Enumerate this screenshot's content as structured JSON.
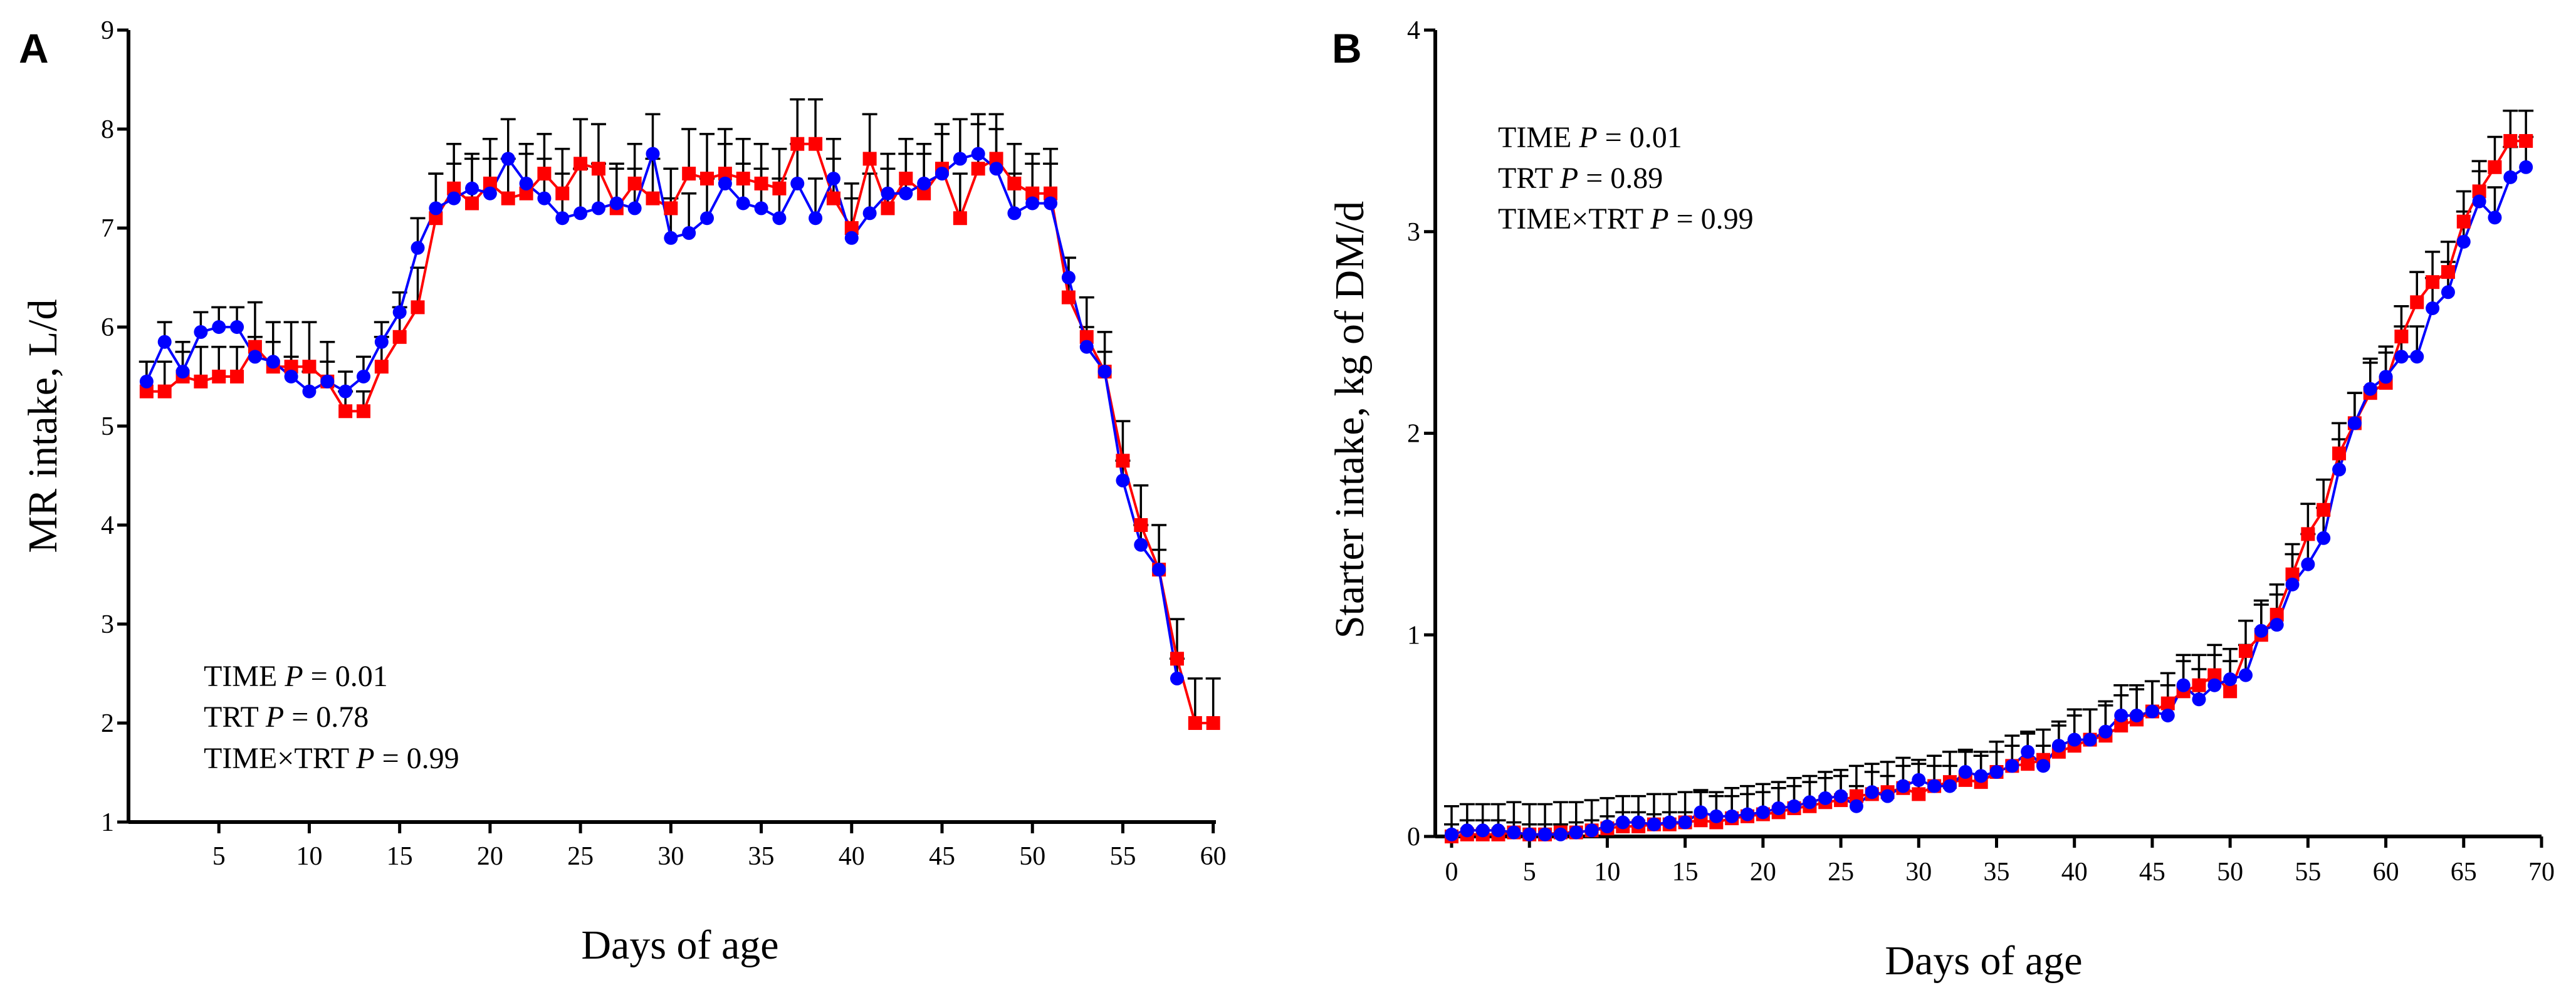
{
  "chart_data": [
    {
      "panel": "A",
      "type": "line",
      "xlabel": "Days of age",
      "ylabel": "MR intake, L/d",
      "xlim": [
        0,
        60
      ],
      "ylim": [
        1,
        9
      ],
      "xticks": [
        5,
        10,
        15,
        20,
        25,
        30,
        35,
        40,
        45,
        50,
        55,
        60
      ],
      "yticks": [
        1,
        2,
        3,
        4,
        5,
        6,
        7,
        8,
        9
      ],
      "stats": [
        {
          "label": "TIME",
          "p_label": "P",
          "value": " = 0.01"
        },
        {
          "label": "TRT",
          "p_label": "P",
          "value": " = 0.78"
        },
        {
          "label": "TIME×TRT",
          "p_label": "P",
          "value": " = 0.99"
        }
      ],
      "series": [
        {
          "name": "red",
          "color": "#ff0000",
          "marker": "square",
          "x": [
            1,
            2,
            3,
            4,
            5,
            6,
            7,
            8,
            9,
            10,
            11,
            12,
            13,
            14,
            15,
            16,
            17,
            18,
            19,
            20,
            21,
            22,
            23,
            24,
            25,
            26,
            27,
            28,
            29,
            30,
            31,
            32,
            33,
            34,
            35,
            36,
            37,
            38,
            39,
            40,
            41,
            42,
            43,
            44,
            45,
            46,
            47,
            48,
            49,
            50,
            51,
            52,
            53,
            54,
            55,
            56,
            57,
            58,
            59,
            60
          ],
          "values": [
            5.35,
            5.35,
            5.5,
            5.45,
            5.5,
            5.5,
            5.8,
            5.6,
            5.6,
            5.6,
            5.45,
            5.15,
            5.15,
            5.6,
            5.9,
            6.2,
            7.1,
            7.4,
            7.25,
            7.45,
            7.3,
            7.35,
            7.55,
            7.35,
            7.65,
            7.6,
            7.2,
            7.45,
            7.3,
            7.2,
            7.55,
            7.5,
            7.55,
            7.5,
            7.45,
            7.4,
            7.85,
            7.85,
            7.3,
            7.0,
            7.7,
            7.2,
            7.5,
            7.35,
            7.6,
            7.1,
            7.6,
            7.7,
            7.45,
            7.35,
            7.35,
            6.3,
            5.9,
            5.55,
            4.65,
            4.0,
            3.55,
            2.65,
            2.0,
            2.0
          ],
          "errors": [
            0.3,
            0.3,
            0.35,
            0.35,
            0.3,
            0.3,
            0.45,
            0.45,
            0.45,
            0.45,
            0.4,
            0.2,
            0.2,
            0.3,
            0.3,
            0.4,
            0.45,
            0.45,
            0.45,
            0.45,
            0.4,
            0.4,
            0.4,
            0.45,
            0.45,
            0.45,
            0.4,
            0.4,
            0.4,
            0.4,
            0.45,
            0.45,
            0.45,
            0.4,
            0.4,
            0.4,
            0.45,
            0.45,
            0.4,
            0.45,
            0.45,
            0.4,
            0.4,
            0.4,
            0.45,
            0.45,
            0.45,
            0.45,
            0.4,
            0.4,
            0.45,
            0.4,
            0.4,
            0.4,
            0.4,
            0.4,
            0.45,
            0.4,
            0.45,
            0.45
          ]
        },
        {
          "name": "blue",
          "color": "#0000ff",
          "marker": "circle",
          "x": [
            1,
            2,
            3,
            4,
            5,
            6,
            7,
            8,
            9,
            10,
            11,
            12,
            13,
            14,
            15,
            16,
            17,
            18,
            19,
            20,
            21,
            22,
            23,
            24,
            25,
            26,
            27,
            28,
            29,
            30,
            31,
            32,
            33,
            34,
            35,
            36,
            37,
            38,
            39,
            40,
            41,
            42,
            43,
            44,
            45,
            46,
            47,
            48,
            49,
            50,
            51,
            52,
            53,
            54,
            55,
            56,
            57,
            58,
            59,
            60
          ],
          "values": [
            5.45,
            5.85,
            5.55,
            5.95,
            6.0,
            6.0,
            5.7,
            5.65,
            5.5,
            5.35,
            5.45,
            5.35,
            5.5,
            5.85,
            6.15,
            6.8,
            7.2,
            7.3,
            7.4,
            7.35,
            7.7,
            7.45,
            7.3,
            7.1,
            7.15,
            7.2,
            7.25,
            7.2,
            7.75,
            6.9,
            6.95,
            7.1,
            7.45,
            7.25,
            7.2,
            7.1,
            7.45,
            7.1,
            7.5,
            6.9,
            7.15,
            7.35,
            7.35,
            7.45,
            7.55,
            7.7,
            7.75,
            7.6,
            7.15,
            7.25,
            7.25,
            6.5,
            5.8,
            5.55,
            4.45,
            3.8,
            3.55,
            2.45,
            null,
            null
          ],
          "errors": [
            0.2,
            0.2,
            0.2,
            0.2,
            0.2,
            0.2,
            0.2,
            0.2,
            0.2,
            0.2,
            0.2,
            0.2,
            0.2,
            0.2,
            0.2,
            0.3,
            0.35,
            0.35,
            0.35,
            0.35,
            0.4,
            0.4,
            0.4,
            0.45,
            0.45,
            0.45,
            0.4,
            0.4,
            0.4,
            0.4,
            0.4,
            0.4,
            0.4,
            0.4,
            0.4,
            0.4,
            0.4,
            0.4,
            0.4,
            0.4,
            0.4,
            0.4,
            0.4,
            0.4,
            0.4,
            0.4,
            0.4,
            0.4,
            0.4,
            0.4,
            0.4,
            0.2,
            0.2,
            0.2,
            0.2,
            0.2,
            0.2,
            0.2,
            0,
            0
          ]
        }
      ]
    },
    {
      "panel": "B",
      "type": "line",
      "xlabel": "Days of age",
      "ylabel": "Starter intake, kg of DM/d",
      "xlim": [
        0,
        70
      ],
      "ylim": [
        0,
        4
      ],
      "xticks": [
        0,
        5,
        10,
        15,
        20,
        25,
        30,
        35,
        40,
        45,
        50,
        55,
        60,
        65,
        70
      ],
      "yticks": [
        0,
        1,
        2,
        3,
        4
      ],
      "stats": [
        {
          "label": "TIME",
          "p_label": "P",
          "value": " = 0.01"
        },
        {
          "label": "TRT",
          "p_label": "P",
          "value": " = 0.89"
        },
        {
          "label": "TIME×TRT",
          "p_label": "P",
          "value": " = 0.99"
        }
      ],
      "series": [
        {
          "name": "red",
          "color": "#ff0000",
          "marker": "square",
          "x": [
            0,
            1,
            2,
            3,
            4,
            5,
            6,
            7,
            8,
            9,
            10,
            11,
            12,
            13,
            14,
            15,
            16,
            17,
            18,
            19,
            20,
            21,
            22,
            23,
            24,
            25,
            26,
            27,
            28,
            29,
            30,
            31,
            32,
            33,
            34,
            35,
            36,
            37,
            38,
            39,
            40,
            41,
            42,
            43,
            44,
            45,
            46,
            47,
            48,
            49,
            50,
            51,
            52,
            53,
            54,
            55,
            56,
            57,
            58,
            59,
            60,
            61,
            62,
            63,
            64,
            65,
            66,
            67,
            68,
            69
          ],
          "values": [
            0.0,
            0.01,
            0.01,
            0.01,
            0.02,
            0.01,
            0.01,
            0.02,
            0.02,
            0.03,
            0.04,
            0.05,
            0.05,
            0.06,
            0.06,
            0.07,
            0.08,
            0.07,
            0.09,
            0.1,
            0.11,
            0.12,
            0.14,
            0.15,
            0.17,
            0.18,
            0.2,
            0.21,
            0.22,
            0.24,
            0.21,
            0.25,
            0.27,
            0.28,
            0.27,
            0.32,
            0.35,
            0.36,
            0.38,
            0.42,
            0.45,
            0.48,
            0.5,
            0.55,
            0.58,
            0.62,
            0.66,
            0.72,
            0.75,
            0.8,
            0.72,
            0.92,
            1.0,
            1.1,
            1.3,
            1.5,
            1.62,
            1.9,
            2.05,
            2.2,
            2.25,
            2.48,
            2.65,
            2.75,
            2.8,
            3.05,
            3.2,
            3.32,
            3.45,
            3.45
          ],
          "errors": [
            0.15,
            0.15,
            0.15,
            0.15,
            0.15,
            0.15,
            0.15,
            0.15,
            0.15,
            0.15,
            0.15,
            0.15,
            0.15,
            0.15,
            0.15,
            0.15,
            0.15,
            0.15,
            0.15,
            0.15,
            0.15,
            0.15,
            0.15,
            0.15,
            0.15,
            0.15,
            0.15,
            0.15,
            0.15,
            0.15,
            0.15,
            0.15,
            0.15,
            0.15,
            0.15,
            0.15,
            0.15,
            0.15,
            0.15,
            0.15,
            0.15,
            0.15,
            0.15,
            0.15,
            0.15,
            0.15,
            0.15,
            0.15,
            0.15,
            0.15,
            0.15,
            0.15,
            0.15,
            0.15,
            0.15,
            0.15,
            0.15,
            0.15,
            0.15,
            0.15,
            0.15,
            0.15,
            0.15,
            0.15,
            0.15,
            0.15,
            0.15,
            0.15,
            0.15,
            0.15
          ]
        },
        {
          "name": "blue",
          "color": "#0000ff",
          "marker": "circle",
          "x": [
            0,
            1,
            2,
            3,
            4,
            5,
            6,
            7,
            8,
            9,
            10,
            11,
            12,
            13,
            14,
            15,
            16,
            17,
            18,
            19,
            20,
            21,
            22,
            23,
            24,
            25,
            26,
            27,
            28,
            29,
            30,
            31,
            32,
            33,
            34,
            35,
            36,
            37,
            38,
            39,
            40,
            41,
            42,
            43,
            44,
            45,
            46,
            47,
            48,
            49,
            50,
            51,
            52,
            53,
            54,
            55,
            56,
            57,
            58,
            59,
            60,
            61,
            62,
            63,
            64,
            65,
            66,
            67,
            68,
            69
          ],
          "values": [
            0.01,
            0.03,
            0.03,
            0.03,
            0.02,
            0.01,
            0.01,
            0.01,
            0.02,
            0.03,
            0.05,
            0.07,
            0.07,
            0.06,
            0.07,
            0.07,
            0.12,
            0.1,
            0.1,
            0.11,
            0.12,
            0.14,
            0.15,
            0.17,
            0.19,
            0.2,
            0.15,
            0.22,
            0.2,
            0.25,
            0.28,
            0.25,
            0.25,
            0.32,
            0.3,
            0.32,
            0.35,
            0.42,
            0.35,
            0.45,
            0.48,
            0.48,
            0.52,
            0.6,
            0.6,
            0.62,
            0.6,
            0.75,
            0.68,
            0.75,
            0.78,
            0.8,
            1.02,
            1.05,
            1.25,
            1.35,
            1.48,
            1.82,
            2.05,
            2.22,
            2.28,
            2.38,
            2.38,
            2.62,
            2.7,
            2.95,
            3.15,
            3.07,
            3.27,
            3.32
          ],
          "errors": [
            0.05,
            0.05,
            0.05,
            0.05,
            0.05,
            0.05,
            0.05,
            0.05,
            0.05,
            0.05,
            0.05,
            0.05,
            0.05,
            0.05,
            0.05,
            0.05,
            0.1,
            0.1,
            0.1,
            0.1,
            0.1,
            0.1,
            0.1,
            0.1,
            0.1,
            0.1,
            0.1,
            0.1,
            0.1,
            0.1,
            0.1,
            0.1,
            0.1,
            0.1,
            0.1,
            0.1,
            0.1,
            0.1,
            0.1,
            0.1,
            0.15,
            0.15,
            0.15,
            0.15,
            0.15,
            0.15,
            0.15,
            0.15,
            0.15,
            0.15,
            0.15,
            0.15,
            0.15,
            0.15,
            0.15,
            0.15,
            0.15,
            0.15,
            0.15,
            0.15,
            0.15,
            0.15,
            0.15,
            0.15,
            0.15,
            0.15,
            0.15,
            0.15,
            0.15,
            0.15
          ]
        }
      ]
    }
  ]
}
